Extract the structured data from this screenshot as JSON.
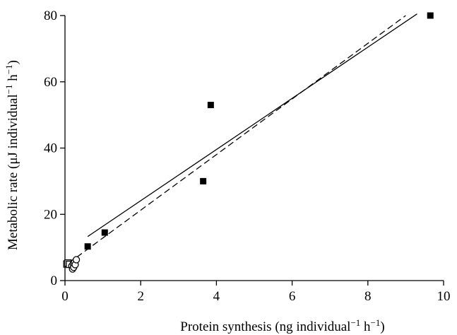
{
  "chart_data": {
    "type": "scatter",
    "title": "",
    "xlabel_parts": [
      "Protein synthesis (ng individual",
      "−1",
      " h",
      "−1",
      ")"
    ],
    "ylabel_parts": [
      "Metabolic rate (μJ individual",
      "−1",
      " h",
      "−1",
      ")"
    ],
    "xlim": [
      0,
      10
    ],
    "ylim": [
      0,
      80
    ],
    "x_ticks": [
      0,
      2,
      4,
      6,
      8,
      10
    ],
    "y_ticks": [
      0,
      20,
      40,
      60,
      80
    ],
    "grid": false,
    "legend": "none",
    "series": [
      {
        "marker": "filled-square",
        "x": [
          0.6,
          1.05,
          3.65,
          3.85,
          9.65
        ],
        "y": [
          10.3,
          14.5,
          30.0,
          53.0,
          80.0
        ]
      },
      {
        "marker": "open-square",
        "x": [
          0.05,
          0.08,
          0.12
        ],
        "y": [
          5.0,
          5.3,
          4.9
        ]
      },
      {
        "marker": "open-circle",
        "x": [
          0.18,
          0.2,
          0.22,
          0.23,
          0.25,
          0.27,
          0.3
        ],
        "y": [
          4.4,
          3.5,
          5.1,
          4.0,
          5.5,
          4.8,
          6.3
        ]
      }
    ],
    "fit_lines": [
      {
        "style": "solid",
        "x": [
          0.6,
          9.3
        ],
        "y": [
          13.3,
          80.5
        ]
      },
      {
        "style": "dashed",
        "x": [
          0.1,
          9.0
        ],
        "y": [
          5.3,
          80.0
        ]
      }
    ]
  }
}
